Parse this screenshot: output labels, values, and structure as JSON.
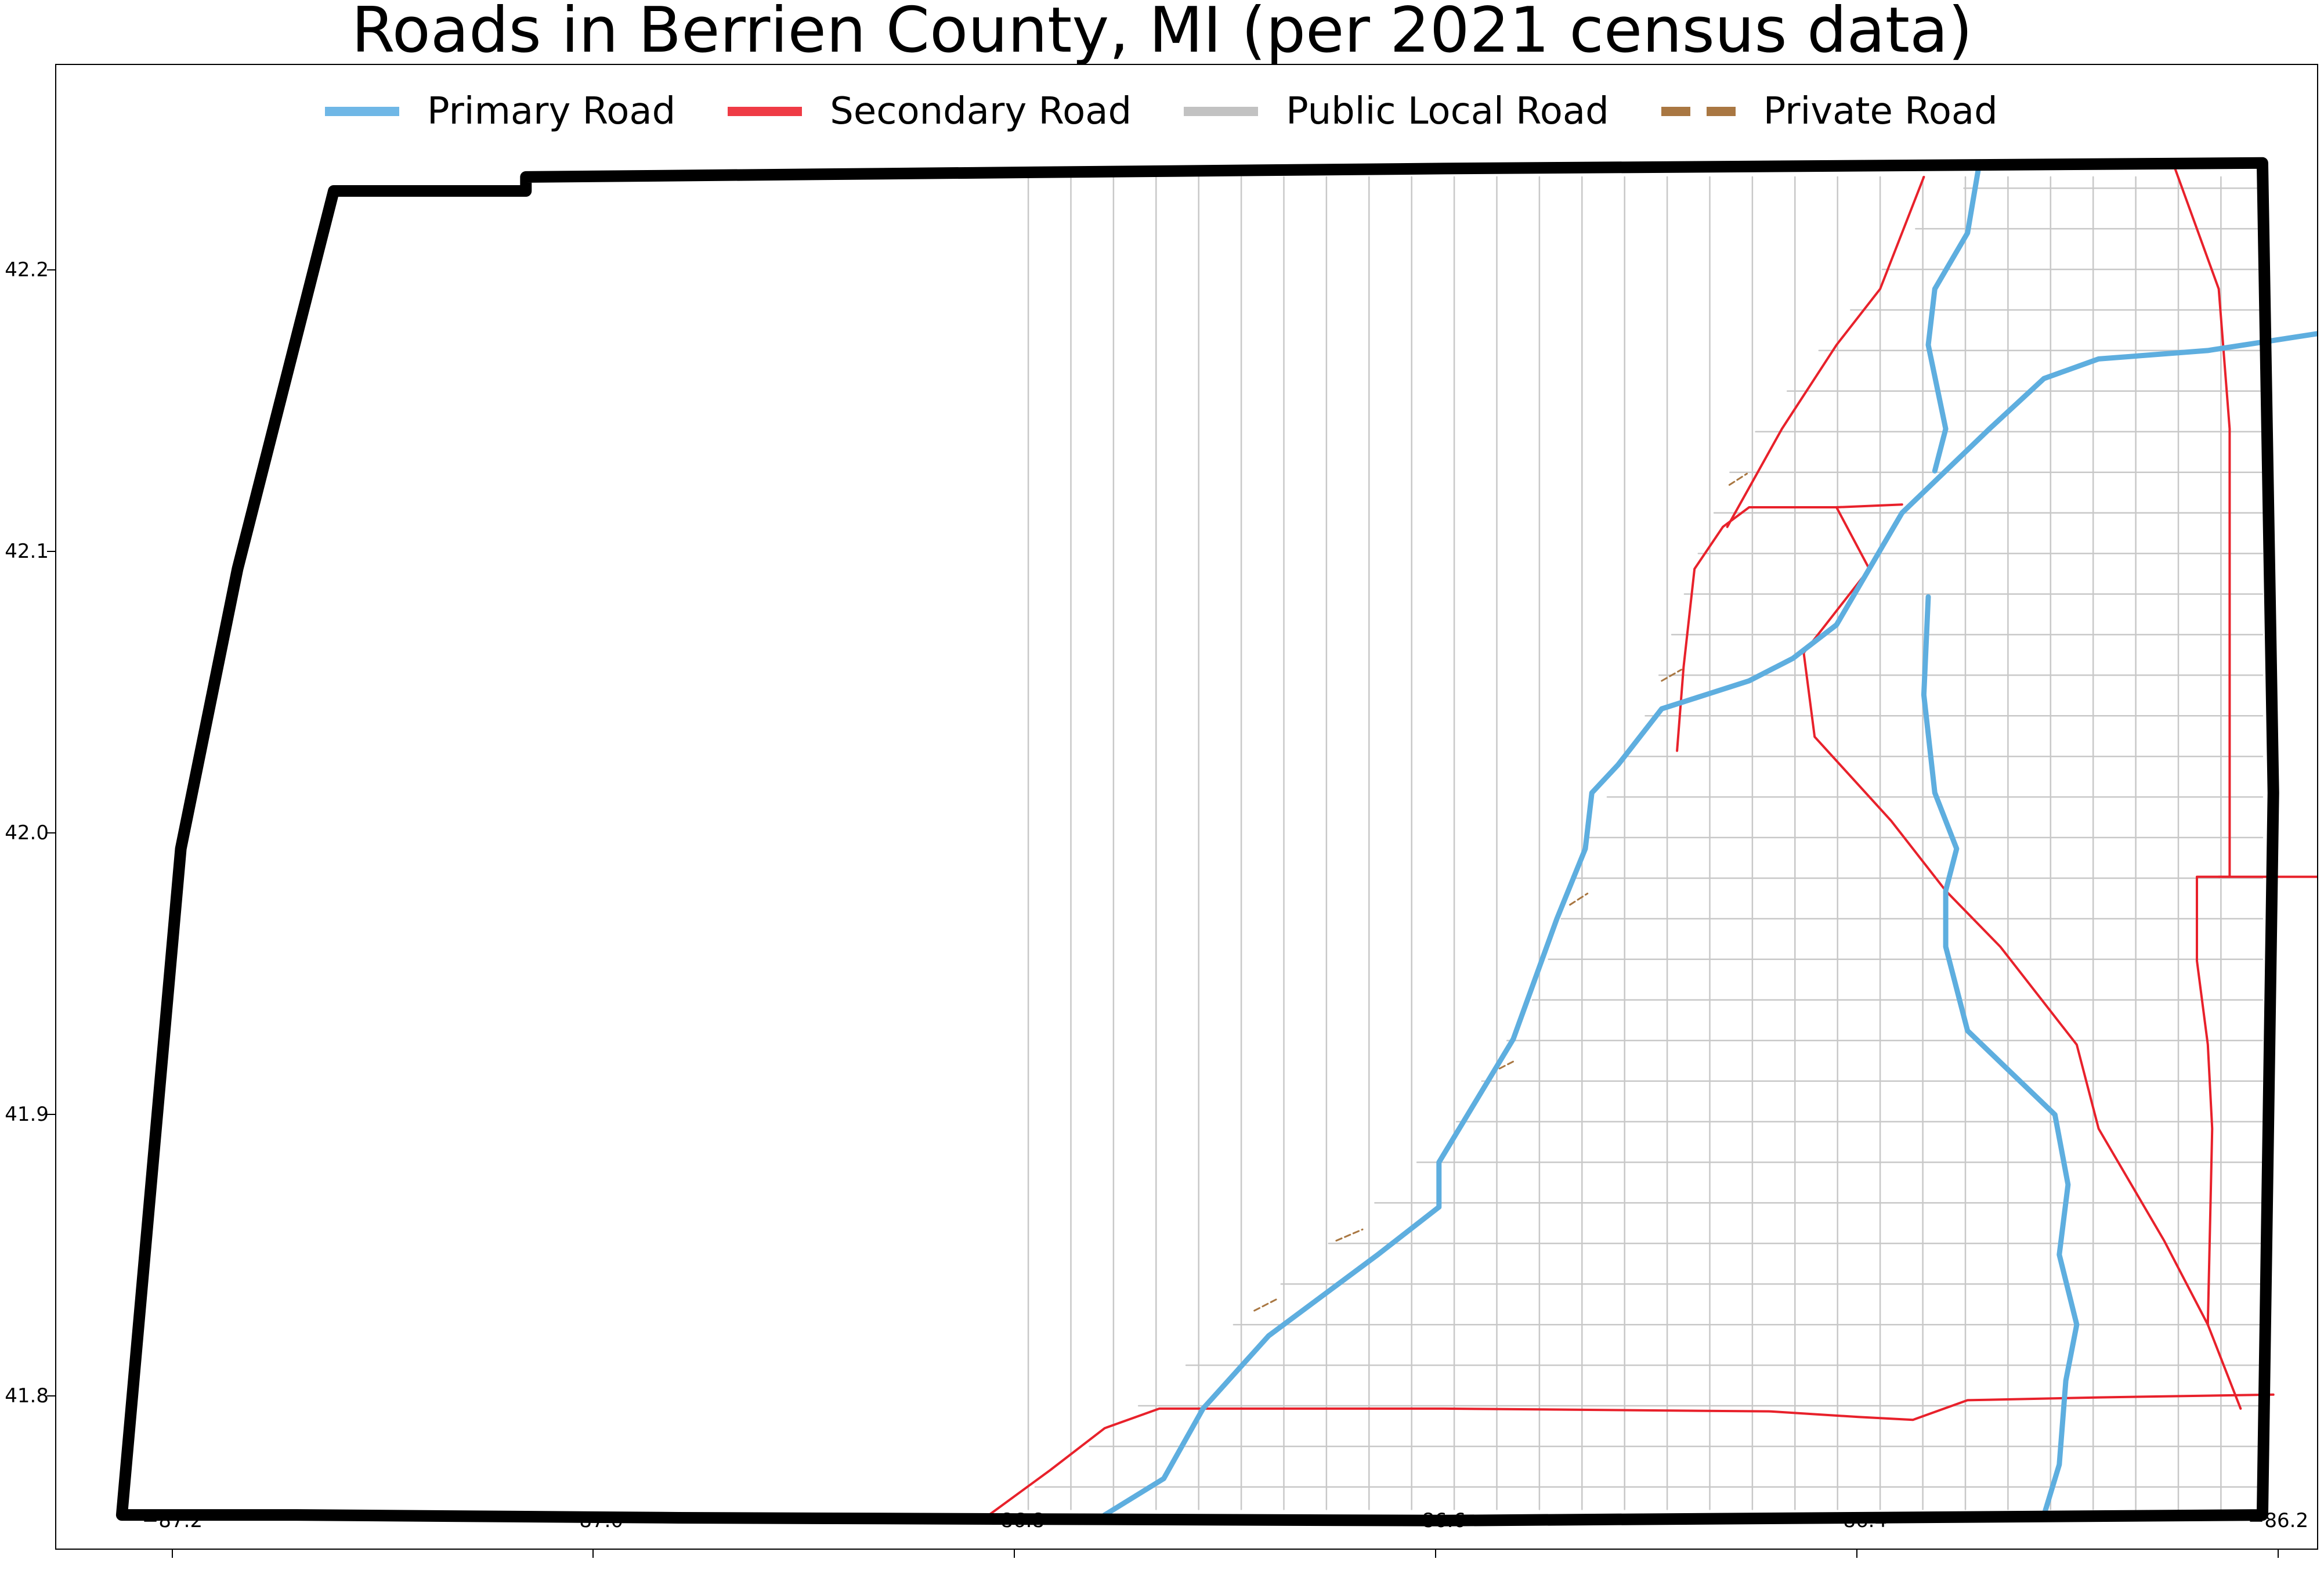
{
  "title": "Roads in Berrien County, MI (per 2021 census data)",
  "legend": [
    {
      "label": "Primary Road",
      "color": "#6fb7e6",
      "style": "solid"
    },
    {
      "label": "Secondary Road",
      "color": "#ef3b45",
      "style": "solid"
    },
    {
      "label": "Public Local Road",
      "color": "#c2c2c2",
      "style": "solid"
    },
    {
      "label": "Private Road",
      "color": "#a97742",
      "style": "dashed"
    }
  ],
  "x_ticks": [
    "−87.2",
    "−87.0",
    "−86.8",
    "−86.6",
    "−86.4",
    "−86.2"
  ],
  "y_ticks": [
    "41.8",
    "41.9",
    "42.0",
    "42.1",
    "42.2"
  ],
  "chart_data": {
    "type": "map",
    "title": "Roads in Berrien County, MI (per 2021 census data)",
    "xlim": [
      -87.235,
      -86.2
    ],
    "ylim": [
      41.75,
      42.28
    ],
    "boundary": [
      [
        -87.205,
        41.762
      ],
      [
        -87.125,
        41.762
      ],
      [
        -86.95,
        41.761
      ],
      [
        -86.6,
        41.76
      ],
      [
        -86.225,
        41.762
      ],
      [
        -86.22,
        42.02
      ],
      [
        -86.225,
        42.245
      ],
      [
        -86.6,
        42.243
      ],
      [
        -87.02,
        42.24
      ],
      [
        -87.02,
        42.235
      ],
      [
        -87.108,
        42.235
      ],
      [
        -87.152,
        42.1
      ],
      [
        -87.178,
        42.0
      ],
      [
        -87.205,
        41.762
      ]
    ],
    "primary_roads": [
      [
        [
          -86.755,
          41.762
        ],
        [
          -86.728,
          41.775
        ],
        [
          -86.71,
          41.8
        ],
        [
          -86.68,
          41.826
        ],
        [
          -86.63,
          41.855
        ],
        [
          -86.602,
          41.872
        ],
        [
          -86.602,
          41.888
        ],
        [
          -86.585,
          41.91
        ],
        [
          -86.568,
          41.932
        ],
        [
          -86.548,
          41.975
        ],
        [
          -86.535,
          42.0
        ],
        [
          -86.532,
          42.02
        ],
        [
          -86.52,
          42.03
        ],
        [
          -86.5,
          42.05
        ],
        [
          -86.48,
          42.055
        ],
        [
          -86.46,
          42.06
        ],
        [
          -86.44,
          42.068
        ],
        [
          -86.42,
          42.08
        ],
        [
          -86.405,
          42.1
        ],
        [
          -86.39,
          42.12
        ],
        [
          -86.37,
          42.135
        ],
        [
          -86.35,
          42.15
        ],
        [
          -86.325,
          42.168
        ],
        [
          -86.3,
          42.175
        ],
        [
          -86.25,
          42.178
        ],
        [
          -86.2,
          42.184
        ]
      ],
      [
        [
          -86.325,
          41.762
        ],
        [
          -86.318,
          41.78
        ],
        [
          -86.315,
          41.81
        ],
        [
          -86.31,
          41.83
        ],
        [
          -86.318,
          41.855
        ],
        [
          -86.314,
          41.88
        ],
        [
          -86.32,
          41.905
        ],
        [
          -86.34,
          41.92
        ],
        [
          -86.36,
          41.935
        ],
        [
          -86.37,
          41.965
        ],
        [
          -86.37,
          41.985
        ],
        [
          -86.365,
          42.0
        ],
        [
          -86.375,
          42.02
        ],
        [
          -86.38,
          42.055
        ],
        [
          -86.378,
          42.09
        ]
      ],
      [
        [
          -86.375,
          42.135
        ],
        [
          -86.37,
          42.15
        ],
        [
          -86.378,
          42.18
        ],
        [
          -86.375,
          42.2
        ],
        [
          -86.36,
          42.22
        ],
        [
          -86.355,
          42.243
        ]
      ]
    ],
    "secondary_roads": [
      [
        [
          -86.808,
          41.762
        ],
        [
          -86.78,
          41.778
        ],
        [
          -86.755,
          41.793
        ],
        [
          -86.73,
          41.8
        ],
        [
          -86.6,
          41.8
        ],
        [
          -86.45,
          41.799
        ],
        [
          -86.41,
          41.797
        ],
        [
          -86.385,
          41.796
        ],
        [
          -86.36,
          41.803
        ],
        [
          -86.3,
          41.804
        ],
        [
          -86.22,
          41.805
        ]
      ],
      [
        [
          -86.493,
          42.035
        ],
        [
          -86.49,
          42.065
        ],
        [
          -86.485,
          42.1
        ],
        [
          -86.472,
          42.115
        ],
        [
          -86.46,
          42.122
        ],
        [
          -86.42,
          42.122
        ],
        [
          -86.39,
          42.123
        ]
      ],
      [
        [
          -86.42,
          42.122
        ],
        [
          -86.405,
          42.1
        ],
        [
          -86.435,
          42.07
        ],
        [
          -86.43,
          42.04
        ],
        [
          -86.395,
          42.01
        ],
        [
          -86.37,
          41.985
        ],
        [
          -86.345,
          41.965
        ],
        [
          -86.31,
          41.93
        ],
        [
          -86.3,
          41.9
        ],
        [
          -86.27,
          41.86
        ],
        [
          -86.25,
          41.83
        ],
        [
          -86.235,
          41.8
        ]
      ],
      [
        [
          -86.265,
          42.243
        ],
        [
          -86.245,
          42.2
        ],
        [
          -86.24,
          42.15
        ],
        [
          -86.24,
          42.05
        ],
        [
          -86.24,
          41.99
        ],
        [
          -86.255,
          41.99
        ],
        [
          -86.255,
          41.96
        ],
        [
          -86.25,
          41.93
        ],
        [
          -86.248,
          41.9
        ],
        [
          -86.25,
          41.83
        ]
      ],
      [
        [
          -86.245,
          41.99
        ],
        [
          -86.2,
          41.99
        ]
      ],
      [
        [
          -86.47,
          42.115
        ],
        [
          -86.445,
          42.15
        ],
        [
          -86.42,
          42.18
        ],
        [
          -86.4,
          42.2
        ],
        [
          -86.38,
          42.24
        ]
      ]
    ],
    "local_roads": "dense grid of local roads (not enumerated)",
    "private_roads": "sparse short segments along the lakeshore (not enumerated)"
  }
}
